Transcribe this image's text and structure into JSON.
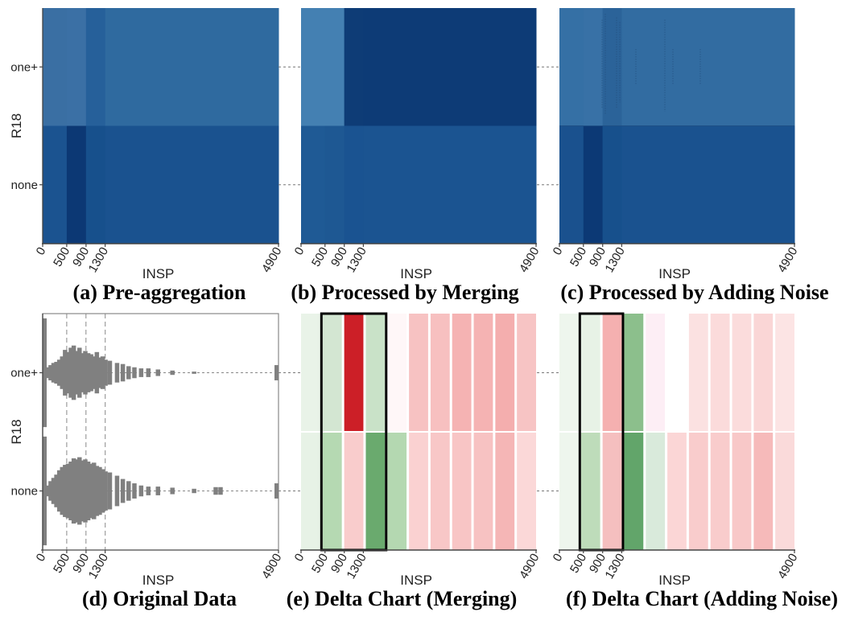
{
  "chart_data": [
    {
      "type": "heatmap",
      "caption": "(a) Pre-aggregation",
      "xlabel": "INSP",
      "ylabel": "R18",
      "xlim": [
        0,
        4900
      ],
      "x_ticks": [
        "0",
        "500",
        "900",
        "1300",
        "4900"
      ],
      "rows": [
        "one+",
        "none"
      ],
      "bins": [
        0,
        500,
        900,
        1300,
        4900
      ],
      "colors": [
        [
          "#3a6fa3",
          "#3b70a5",
          "#26609a",
          "#2f6a9f"
        ],
        [
          "#1b5390",
          "#0c3874",
          "#17508c",
          "#1a528f"
        ]
      ]
    },
    {
      "type": "heatmap",
      "caption": "(b) Processed by Merging",
      "xlabel": "INSP",
      "ylabel": "",
      "xlim": [
        0,
        4900
      ],
      "x_ticks": [
        "0",
        "500",
        "900",
        "1300",
        "4900"
      ],
      "rows": [
        "one+",
        "none"
      ],
      "bins": [
        0,
        500,
        900,
        1300,
        4900
      ],
      "colors": [
        [
          "#4480b2",
          "#4480b2",
          "#0e3c76",
          "#0d3b76"
        ],
        [
          "#1f5a95",
          "#1e5893",
          "#1a5391",
          "#1b5491"
        ]
      ]
    },
    {
      "type": "heatmap",
      "caption": "(c) Processed by Adding Noise",
      "xlabel": "INSP",
      "ylabel": "",
      "xlim": [
        0,
        4900
      ],
      "x_ticks": [
        "0",
        "500",
        "900",
        "1300",
        "4900"
      ],
      "rows": [
        "one+",
        "none"
      ],
      "bins": [
        0,
        500,
        900,
        1300,
        4900
      ],
      "colors": [
        [
          "#3570a5",
          "#3871a6",
          "#2b6399",
          "#326ca1"
        ],
        [
          "#1a518e",
          "#0c3975",
          "#17508c",
          "#1a528f"
        ]
      ]
    },
    {
      "type": "bar",
      "caption": "(d) Original Data",
      "xlabel": "INSP",
      "ylabel": "R18",
      "xlim": [
        0,
        4900
      ],
      "x_ticks": [
        "0",
        "500",
        "900",
        "1300",
        "4900"
      ],
      "rows": [
        "one+",
        "none"
      ],
      "reference_lines_x": [
        500,
        900,
        1300
      ],
      "series": [
        {
          "name": "one+",
          "x": [
            0,
            60,
            120,
            180,
            240,
            300,
            360,
            420,
            480,
            540,
            600,
            660,
            720,
            780,
            840,
            900,
            960,
            1020,
            1080,
            1140,
            1200,
            1260,
            1350,
            1500,
            1620,
            1740,
            1860,
            2000,
            2150,
            2350,
            2650,
            3100,
            4900
          ],
          "values": [
            1.0,
            0.1,
            0.14,
            0.18,
            0.2,
            0.24,
            0.3,
            0.42,
            0.38,
            0.46,
            0.5,
            0.4,
            0.46,
            0.36,
            0.4,
            0.36,
            0.34,
            0.3,
            0.38,
            0.28,
            0.3,
            0.24,
            0.22,
            0.18,
            0.16,
            0.12,
            0.1,
            0.08,
            0.08,
            0.06,
            0.04,
            0.02,
            0.14
          ]
        },
        {
          "name": "none",
          "x": [
            0,
            60,
            120,
            180,
            240,
            300,
            360,
            420,
            480,
            540,
            600,
            660,
            720,
            780,
            840,
            900,
            960,
            1020,
            1080,
            1140,
            1200,
            1260,
            1350,
            1500,
            1620,
            1740,
            1860,
            2000,
            2150,
            2350,
            2650,
            3100,
            3550,
            3650,
            4900
          ],
          "values": [
            1.0,
            0.1,
            0.18,
            0.24,
            0.3,
            0.38,
            0.44,
            0.48,
            0.5,
            0.54,
            0.6,
            0.58,
            0.62,
            0.56,
            0.58,
            0.54,
            0.5,
            0.52,
            0.46,
            0.44,
            0.4,
            0.36,
            0.34,
            0.28,
            0.22,
            0.18,
            0.14,
            0.1,
            0.08,
            0.08,
            0.06,
            0.04,
            0.07,
            0.07,
            0.14
          ]
        }
      ]
    },
    {
      "type": "heatmap",
      "caption": "(e) Delta Chart (Merging)",
      "xlabel": "INSP",
      "ylabel": "",
      "xlim": [
        0,
        4900
      ],
      "x_ticks": [
        "0",
        "500",
        "900",
        "1300",
        "4900"
      ],
      "rows": [
        "one+",
        "none"
      ],
      "columns": 11,
      "highlight_columns": [
        1,
        3
      ],
      "colors": [
        [
          "#e9f3e8",
          "#d3e6d2",
          "#cc1f27",
          "#c9e2c8",
          "#fff7f8",
          "#f7c2c2",
          "#f7c0c0",
          "#f5b3b3",
          "#f5b3b3",
          "#f4aeae",
          "#f7c4c4"
        ],
        [
          "#e7f2e6",
          "#b5d9b2",
          "#f9cccc",
          "#6aaa6e",
          "#b4d8b1",
          "#fad1d1",
          "#f8c7c7",
          "#f8c5c5",
          "#f7c2c2",
          "#f5b6b6",
          "#fbd8d8"
        ]
      ]
    },
    {
      "type": "heatmap",
      "caption": "(f) Delta Chart (Adding Noise)",
      "xlabel": "INSP",
      "ylabel": "",
      "xlim": [
        0,
        4900
      ],
      "x_ticks": [
        "0",
        "500",
        "900",
        "1300",
        "4900"
      ],
      "rows": [
        "one+",
        "none"
      ],
      "columns": 11,
      "highlight_columns": [
        1,
        2
      ],
      "colors": [
        [
          "#eef6ed",
          "#e7f2e6",
          "#f5b0b0",
          "#8cbf8c",
          "#fdeef5",
          "#ffffff",
          "#fbe1e1",
          "#fbdbdb",
          "#fbdcdc",
          "#fad6d6",
          "#fce4e4"
        ],
        [
          "#eef6ed",
          "#bedcba",
          "#f5bfbf",
          "#62a56a",
          "#d9eadb",
          "#fbd6d6",
          "#f9cccc",
          "#f9cccc",
          "#f8c8c8",
          "#f6baba",
          "#fadada"
        ]
      ]
    }
  ]
}
